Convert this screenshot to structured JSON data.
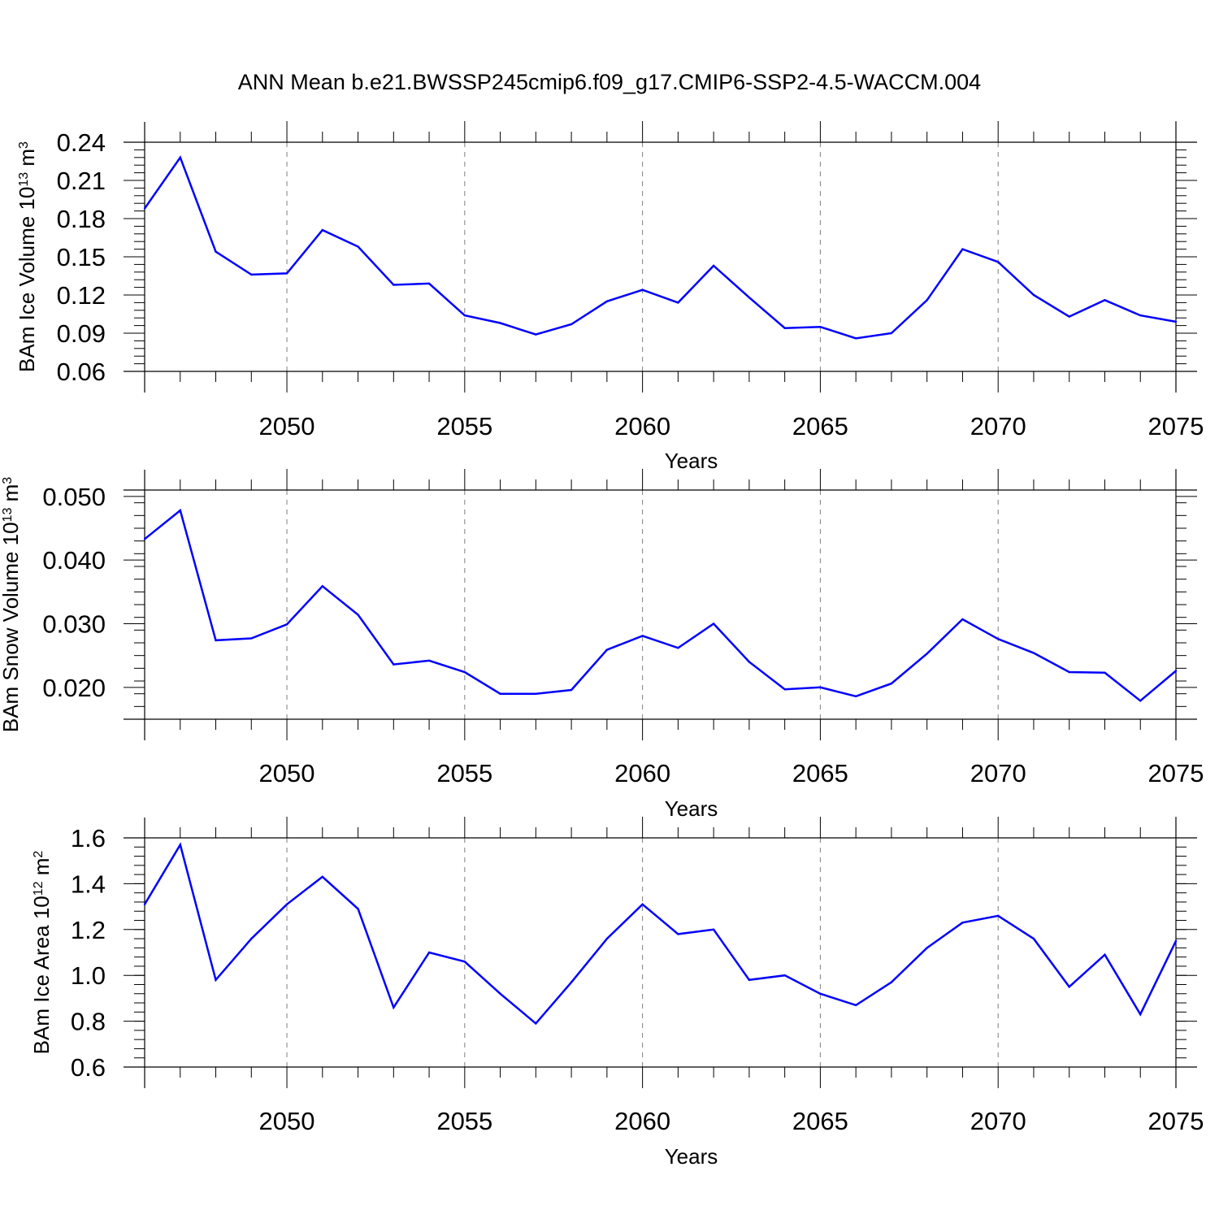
{
  "title": "ANN Mean b.e21.BWSSP245cmip6.f09_g17.CMIP6-SSP2-4.5-WACCM.004",
  "colors": {
    "series": "#0000ff",
    "axis": "#000000",
    "grid": "#7f7f7f"
  },
  "chart_data": [
    {
      "type": "line",
      "id": "ice-volume",
      "ylabel": {
        "main": "BAm Ice Volume 10",
        "exp": "13",
        "unit": " m",
        "unit_exp": "3"
      },
      "xlabel": "Years",
      "xlim": [
        2046,
        2075
      ],
      "ylim": [
        0.06,
        0.24
      ],
      "yticks": [
        0.06,
        0.09,
        0.12,
        0.15,
        0.18,
        0.21,
        0.24
      ],
      "ytick_labels": [
        "0.06",
        "0.09",
        "0.12",
        "0.15",
        "0.18",
        "0.21",
        "0.24"
      ],
      "ytick_minor": 0.006,
      "xticks": [
        2050,
        2055,
        2060,
        2065,
        2070,
        2075
      ],
      "xtick_labels": [
        "2050",
        "2055",
        "2060",
        "2065",
        "2070",
        "2075"
      ],
      "grid": "vertical dashed at major x ticks",
      "x": [
        2046,
        2047,
        2048,
        2049,
        2050,
        2051,
        2052,
        2053,
        2054,
        2055,
        2056,
        2057,
        2058,
        2059,
        2060,
        2061,
        2062,
        2063,
        2064,
        2065,
        2066,
        2067,
        2068,
        2069,
        2070,
        2071,
        2072,
        2073,
        2074,
        2075
      ],
      "values": [
        0.188,
        0.228,
        0.154,
        0.136,
        0.137,
        0.171,
        0.158,
        0.128,
        0.129,
        0.104,
        0.098,
        0.089,
        0.097,
        0.115,
        0.124,
        0.114,
        0.143,
        0.118,
        0.094,
        0.095,
        0.086,
        0.09,
        0.116,
        0.156,
        0.146,
        0.12,
        0.103,
        0.116,
        0.104,
        0.099
      ]
    },
    {
      "type": "line",
      "id": "snow-volume",
      "ylabel": {
        "main": "BAm Snow Volume 10",
        "exp": "13",
        "unit": " m",
        "unit_exp": "3"
      },
      "xlabel": "Years",
      "xlim": [
        2046,
        2075
      ],
      "ylim": [
        0.015,
        0.051
      ],
      "yticks": [
        0.02,
        0.03,
        0.04,
        0.05
      ],
      "ytick_labels": [
        "0.020",
        "0.030",
        "0.040",
        "0.050"
      ],
      "ytick_minor": 0.002,
      "xticks": [
        2050,
        2055,
        2060,
        2065,
        2070,
        2075
      ],
      "xtick_labels": [
        "2050",
        "2055",
        "2060",
        "2065",
        "2070",
        "2075"
      ],
      "grid": "vertical dashed at major x ticks",
      "x": [
        2046,
        2047,
        2048,
        2049,
        2050,
        2051,
        2052,
        2053,
        2054,
        2055,
        2056,
        2057,
        2058,
        2059,
        2060,
        2061,
        2062,
        2063,
        2064,
        2065,
        2066,
        2067,
        2068,
        2069,
        2070,
        2071,
        2072,
        2073,
        2074,
        2075
      ],
      "values": [
        0.0433,
        0.0478,
        0.0274,
        0.0277,
        0.0299,
        0.0359,
        0.0314,
        0.0236,
        0.0242,
        0.0224,
        0.019,
        0.019,
        0.0196,
        0.0259,
        0.0281,
        0.0262,
        0.03,
        0.024,
        0.0197,
        0.02,
        0.0186,
        0.0206,
        0.0253,
        0.0307,
        0.0276,
        0.0254,
        0.0224,
        0.0223,
        0.0179,
        0.0226
      ]
    },
    {
      "type": "line",
      "id": "ice-area",
      "ylabel": {
        "main": "BAm Ice Area 10",
        "exp": "12",
        "unit": " m",
        "unit_exp": "2"
      },
      "xlabel": "Years",
      "xlim": [
        2046,
        2075
      ],
      "ylim": [
        0.6,
        1.6
      ],
      "yticks": [
        0.6,
        0.8,
        1.0,
        1.2,
        1.4,
        1.6
      ],
      "ytick_labels": [
        "0.6",
        "0.8",
        "1.0",
        "1.2",
        "1.4",
        "1.6"
      ],
      "ytick_minor": 0.04,
      "xticks": [
        2050,
        2055,
        2060,
        2065,
        2070,
        2075
      ],
      "xtick_labels": [
        "2050",
        "2055",
        "2060",
        "2065",
        "2070",
        "2075"
      ],
      "grid": "vertical dashed at major x ticks",
      "x": [
        2046,
        2047,
        2048,
        2049,
        2050,
        2051,
        2052,
        2053,
        2054,
        2055,
        2056,
        2057,
        2058,
        2059,
        2060,
        2061,
        2062,
        2063,
        2064,
        2065,
        2066,
        2067,
        2068,
        2069,
        2070,
        2071,
        2072,
        2073,
        2074,
        2075
      ],
      "values": [
        1.31,
        1.57,
        0.98,
        1.16,
        1.31,
        1.43,
        1.29,
        0.86,
        1.1,
        1.06,
        0.92,
        0.79,
        0.97,
        1.16,
        1.31,
        1.18,
        1.2,
        0.98,
        1.0,
        0.92,
        0.87,
        0.97,
        1.12,
        1.23,
        1.26,
        1.16,
        0.95,
        1.09,
        0.83,
        1.15
      ]
    }
  ]
}
